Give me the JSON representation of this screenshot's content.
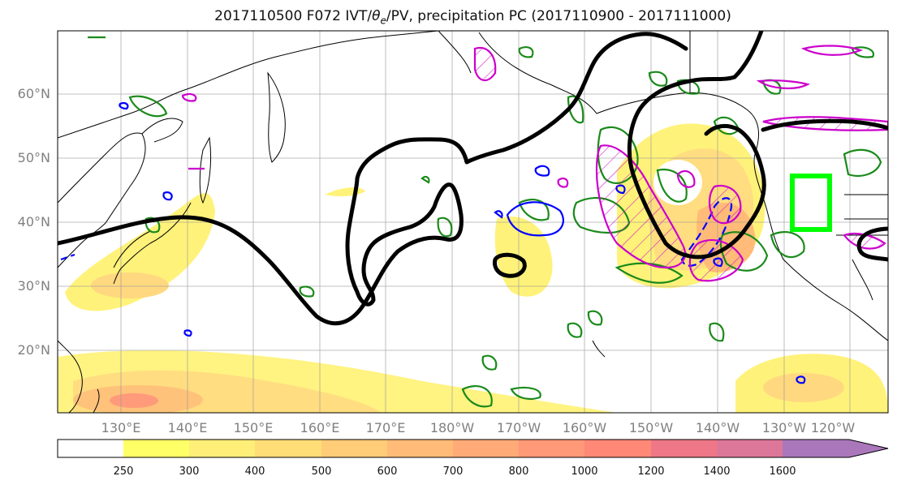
{
  "title": {
    "prefix": "2017110500 F072 IVT/",
    "theta": "θ",
    "sub": "e",
    "suffix": "/PV, precipitation PC (2017110900 - 2017111000)"
  },
  "map": {
    "lat_labels": [
      "60°N",
      "50°N",
      "40°N",
      "30°N",
      "20°N"
    ],
    "lon_labels": [
      "130°E",
      "140°E",
      "150°E",
      "160°E",
      "170°E",
      "180°W",
      "170°W",
      "160°W",
      "150°W",
      "140°W",
      "130°W",
      "120°W"
    ],
    "highlight_box_color": "#00ff00",
    "pv_contour_color": "#000000",
    "positive_contour_color": "#1a8a1a",
    "negative_contour_color": "#0000ff",
    "hatched_contour_color": "#cc00cc"
  },
  "colorbar": {
    "labels": [
      "250",
      "300",
      "400",
      "500",
      "600",
      "700",
      "800",
      "1000",
      "1200",
      "1400",
      "1600"
    ],
    "colors": [
      "#ffff66",
      "#ffee77",
      "#ffdd77",
      "#ffcc77",
      "#ffbb77",
      "#ffaa77",
      "#ff9977",
      "#ff8877",
      "#ee7788",
      "#dd7799",
      "#bb77aa",
      "#aa77bb"
    ]
  }
}
